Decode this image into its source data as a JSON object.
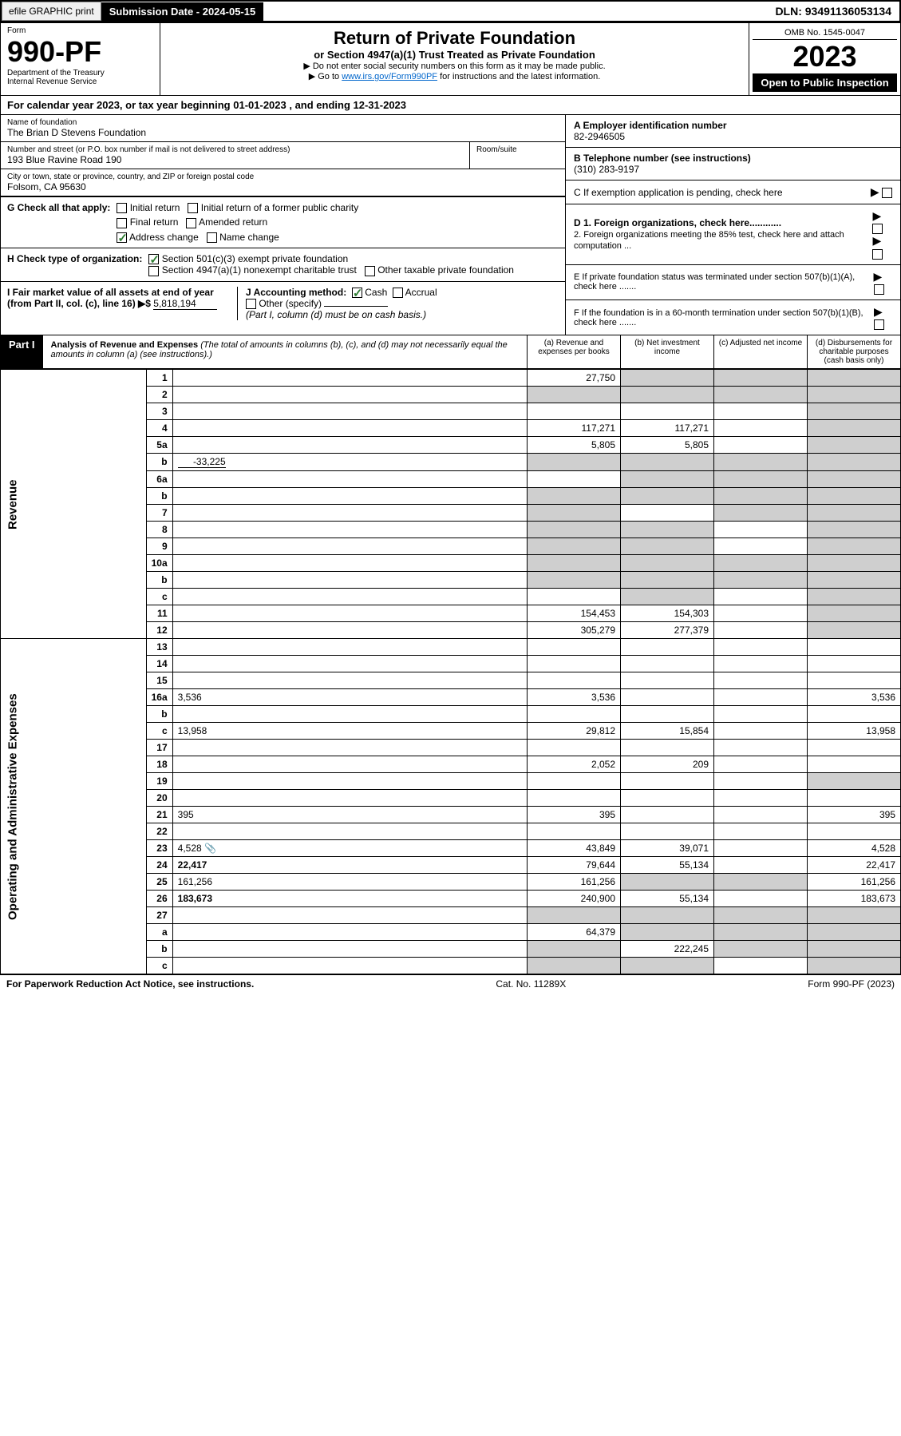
{
  "topbar": {
    "efile": "efile GRAPHIC print",
    "submission": "Submission Date - 2024-05-15",
    "dln": "DLN: 93491136053134"
  },
  "header": {
    "form_label": "Form",
    "form_number": "990-PF",
    "dept": "Department of the Treasury",
    "irs": "Internal Revenue Service",
    "title": "Return of Private Foundation",
    "subtitle": "or Section 4947(a)(1) Trust Treated as Private Foundation",
    "note1": "▶ Do not enter social security numbers on this form as it may be made public.",
    "note2_pre": "▶ Go to ",
    "note2_link": "www.irs.gov/Form990PF",
    "note2_post": " for instructions and the latest information.",
    "omb": "OMB No. 1545-0047",
    "year": "2023",
    "open": "Open to Public Inspection"
  },
  "calendar": {
    "text_pre": "For calendar year 2023, or tax year beginning ",
    "begin": "01-01-2023",
    "text_mid": " , and ending ",
    "end": "12-31-2023"
  },
  "entity": {
    "name_label": "Name of foundation",
    "name": "The Brian D Stevens Foundation",
    "addr_label": "Number and street (or P.O. box number if mail is not delivered to street address)",
    "addr": "193 Blue Ravine Road 190",
    "room_label": "Room/suite",
    "city_label": "City or town, state or province, country, and ZIP or foreign postal code",
    "city": "Folsom, CA  95630",
    "ein_label": "A Employer identification number",
    "ein": "82-2946505",
    "phone_label": "B Telephone number (see instructions)",
    "phone": "(310) 283-9197",
    "c_label": "C If exemption application is pending, check here",
    "d1_label": "D 1. Foreign organizations, check here............",
    "d2_label": "2. Foreign organizations meeting the 85% test, check here and attach computation ...",
    "e_label": "E  If private foundation status was terminated under section 507(b)(1)(A), check here .......",
    "f_label": "F  If the foundation is in a 60-month termination under section 507(b)(1)(B), check here .......",
    "g_label": "G Check all that apply:",
    "g_opts": [
      "Initial return",
      "Initial return of a former public charity",
      "Final return",
      "Amended return",
      "Address change",
      "Name change"
    ],
    "h_label": "H Check type of organization:",
    "h_opts": [
      "Section 501(c)(3) exempt private foundation",
      "Section 4947(a)(1) nonexempt charitable trust",
      "Other taxable private foundation"
    ],
    "i_label": "I Fair market value of all assets at end of year (from Part II, col. (c), line 16) ▶$",
    "i_val": "5,818,194",
    "j_label": "J Accounting method:",
    "j_cash": "Cash",
    "j_accrual": "Accrual",
    "j_other": "Other (specify)",
    "j_note": "(Part I, column (d) must be on cash basis.)"
  },
  "part1": {
    "label": "Part I",
    "title": "Analysis of Revenue and Expenses",
    "title_note": "(The total of amounts in columns (b), (c), and (d) may not necessarily equal the amounts in column (a) (see instructions).)",
    "col_a": "(a)  Revenue and expenses per books",
    "col_b": "(b)  Net investment income",
    "col_c": "(c)  Adjusted net income",
    "col_d": "(d)  Disbursements for charitable purposes (cash basis only)"
  },
  "sections": {
    "rev": "Revenue",
    "exp": "Operating and Administrative Expenses"
  },
  "rows": [
    {
      "n": "1",
      "d": "",
      "a": "27,750",
      "b": "",
      "c": "",
      "shade": [
        "b",
        "c",
        "d"
      ]
    },
    {
      "n": "2",
      "d": "",
      "a": "",
      "b": "",
      "c": "",
      "shade": [
        "a",
        "b",
        "c",
        "d"
      ]
    },
    {
      "n": "3",
      "d": "",
      "a": "",
      "b": "",
      "c": "",
      "shade": [
        "d"
      ]
    },
    {
      "n": "4",
      "d": "",
      "a": "117,271",
      "b": "117,271",
      "c": "",
      "shade": [
        "d"
      ]
    },
    {
      "n": "5a",
      "d": "",
      "a": "5,805",
      "b": "5,805",
      "c": "",
      "shade": [
        "d"
      ]
    },
    {
      "n": "b",
      "d": "",
      "a": "",
      "b": "",
      "c": "",
      "shade": [
        "a",
        "b",
        "c",
        "d"
      ],
      "inline": "-33,225"
    },
    {
      "n": "6a",
      "d": "",
      "a": "",
      "b": "",
      "c": "",
      "shade": [
        "b",
        "c",
        "d"
      ]
    },
    {
      "n": "b",
      "d": "",
      "a": "",
      "b": "",
      "c": "",
      "shade": [
        "a",
        "b",
        "c",
        "d"
      ]
    },
    {
      "n": "7",
      "d": "",
      "a": "",
      "b": "",
      "c": "",
      "shade": [
        "a",
        "c",
        "d"
      ]
    },
    {
      "n": "8",
      "d": "",
      "a": "",
      "b": "",
      "c": "",
      "shade": [
        "a",
        "b",
        "d"
      ]
    },
    {
      "n": "9",
      "d": "",
      "a": "",
      "b": "",
      "c": "",
      "shade": [
        "a",
        "b",
        "d"
      ]
    },
    {
      "n": "10a",
      "d": "",
      "a": "",
      "b": "",
      "c": "",
      "shade": [
        "a",
        "b",
        "c",
        "d"
      ]
    },
    {
      "n": "b",
      "d": "",
      "a": "",
      "b": "",
      "c": "",
      "shade": [
        "a",
        "b",
        "c",
        "d"
      ]
    },
    {
      "n": "c",
      "d": "",
      "a": "",
      "b": "",
      "c": "",
      "shade": [
        "b",
        "d"
      ]
    },
    {
      "n": "11",
      "d": "",
      "a": "154,453",
      "b": "154,303",
      "c": "",
      "shade": [
        "d"
      ]
    },
    {
      "n": "12",
      "d": "",
      "a": "305,279",
      "b": "277,379",
      "c": "",
      "shade": [
        "d"
      ],
      "bold": true
    },
    {
      "n": "13",
      "d": "",
      "a": "",
      "b": "",
      "c": ""
    },
    {
      "n": "14",
      "d": "",
      "a": "",
      "b": "",
      "c": ""
    },
    {
      "n": "15",
      "d": "",
      "a": "",
      "b": "",
      "c": ""
    },
    {
      "n": "16a",
      "d": "3,536",
      "a": "3,536",
      "b": "",
      "c": ""
    },
    {
      "n": "b",
      "d": "",
      "a": "",
      "b": "",
      "c": ""
    },
    {
      "n": "c",
      "d": "13,958",
      "a": "29,812",
      "b": "15,854",
      "c": ""
    },
    {
      "n": "17",
      "d": "",
      "a": "",
      "b": "",
      "c": ""
    },
    {
      "n": "18",
      "d": "",
      "a": "2,052",
      "b": "209",
      "c": ""
    },
    {
      "n": "19",
      "d": "",
      "a": "",
      "b": "",
      "c": "",
      "shade": [
        "d"
      ]
    },
    {
      "n": "20",
      "d": "",
      "a": "",
      "b": "",
      "c": ""
    },
    {
      "n": "21",
      "d": "395",
      "a": "395",
      "b": "",
      "c": ""
    },
    {
      "n": "22",
      "d": "",
      "a": "",
      "b": "",
      "c": ""
    },
    {
      "n": "23",
      "d": "4,528",
      "a": "43,849",
      "b": "39,071",
      "c": "",
      "icon": true
    },
    {
      "n": "24",
      "d": "22,417",
      "a": "79,644",
      "b": "55,134",
      "c": "",
      "bold": true
    },
    {
      "n": "25",
      "d": "161,256",
      "a": "161,256",
      "b": "",
      "c": "",
      "shade": [
        "b",
        "c"
      ]
    },
    {
      "n": "26",
      "d": "183,673",
      "a": "240,900",
      "b": "55,134",
      "c": "",
      "bold": true
    },
    {
      "n": "27",
      "d": "",
      "a": "",
      "b": "",
      "c": "",
      "shade": [
        "a",
        "b",
        "c",
        "d"
      ]
    },
    {
      "n": "a",
      "d": "",
      "a": "64,379",
      "b": "",
      "c": "",
      "shade": [
        "b",
        "c",
        "d"
      ],
      "bold": true
    },
    {
      "n": "b",
      "d": "",
      "a": "",
      "b": "222,245",
      "c": "",
      "shade": [
        "a",
        "c",
        "d"
      ],
      "bold": true
    },
    {
      "n": "c",
      "d": "",
      "a": "",
      "b": "",
      "c": "",
      "shade": [
        "a",
        "b",
        "d"
      ],
      "bold": true
    }
  ],
  "footer": {
    "left": "For Paperwork Reduction Act Notice, see instructions.",
    "mid": "Cat. No. 11289X",
    "right": "Form 990-PF (2023)"
  }
}
